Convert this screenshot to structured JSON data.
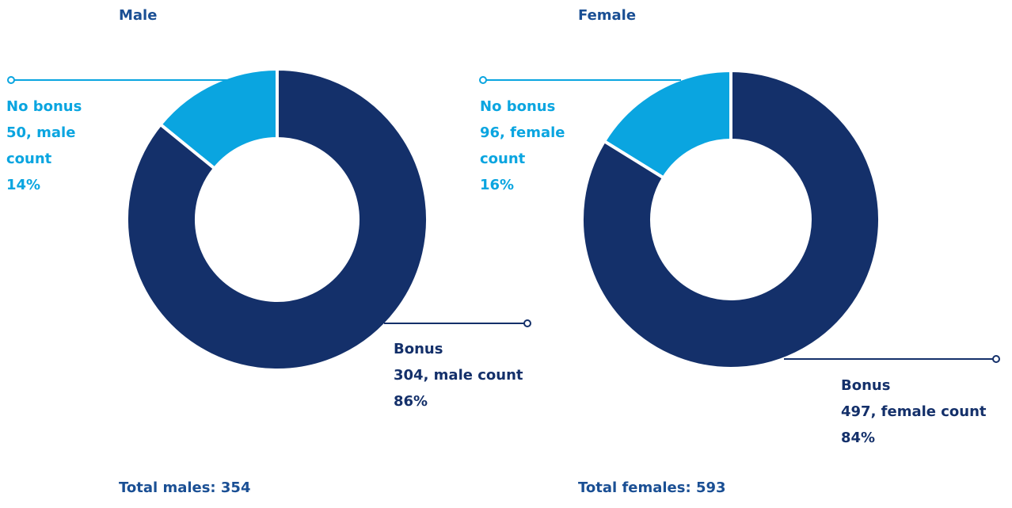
{
  "chart_data": [
    {
      "type": "pie",
      "title": "Male",
      "categories": [
        "No bonus",
        "Bonus"
      ],
      "values": [
        50,
        304
      ],
      "value_labels": [
        "50, male count",
        "304, male count"
      ],
      "percent_labels": [
        "14%",
        "86%"
      ],
      "colors": [
        "#0aa5e0",
        "#14306a"
      ],
      "total": "Total males: 354"
    },
    {
      "type": "pie",
      "title": "Female",
      "categories": [
        "No bonus",
        "Bonus"
      ],
      "values": [
        96,
        497
      ],
      "value_labels": [
        "96, female count",
        "497, female count"
      ],
      "percent_labels": [
        "16%",
        "84%"
      ],
      "colors": [
        "#0aa5e0",
        "#14306a"
      ],
      "total": "Total females: 593"
    }
  ]
}
